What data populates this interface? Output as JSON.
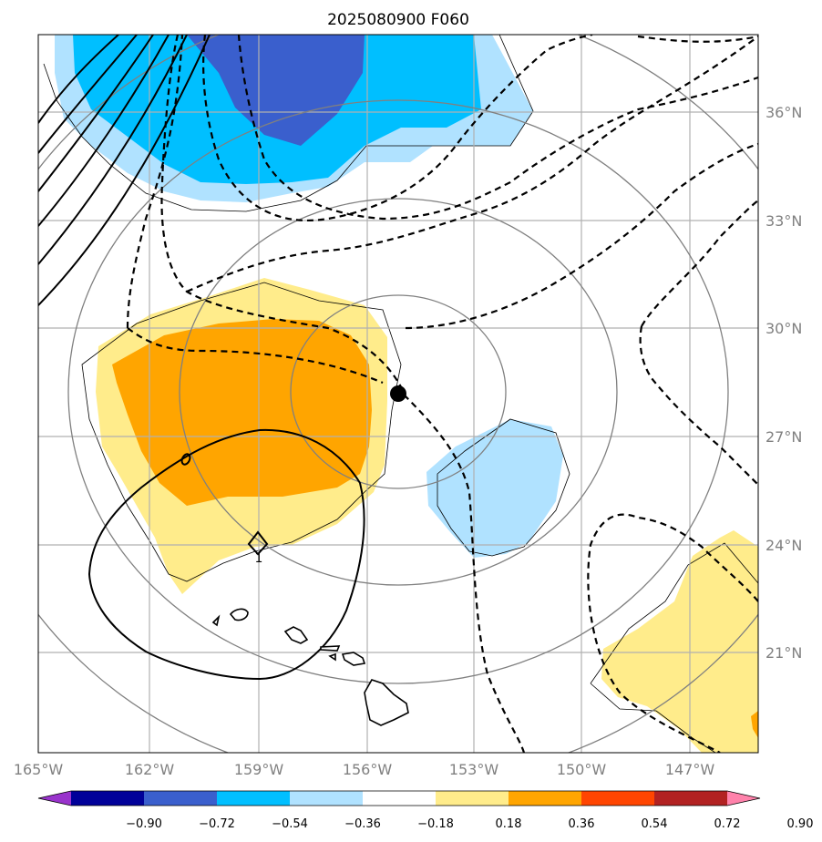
{
  "title": "2025080900 F060",
  "longitude_labels": [
    "165°W",
    "162°W",
    "159°W",
    "156°W",
    "153°W",
    "150°W",
    "147°W"
  ],
  "latitude_labels": [
    "36°N",
    "33°N",
    "30°N",
    "27°N",
    "24°N",
    "21°N"
  ],
  "contour_label": "1",
  "colorbar": {
    "tick_labels": [
      "−0.90",
      "−0.72",
      "−0.54",
      "−0.36",
      "−0.18",
      "0.18",
      "0.36",
      "0.54",
      "0.72",
      "0.90"
    ],
    "colors": [
      "#9933cc",
      "#000099",
      "#3a5fcd",
      "#00bfff",
      "#b0e2ff",
      "#ffffff",
      "#ffec8b",
      "#ffa500",
      "#ff4500",
      "#b22222",
      "#ff82ab"
    ]
  },
  "colors": {
    "light_blue": "#b0e2ff",
    "sky_blue": "#00bfff",
    "royal_blue": "#3a5fcd",
    "light_yellow": "#ffec8b",
    "orange": "#ffa500"
  }
}
